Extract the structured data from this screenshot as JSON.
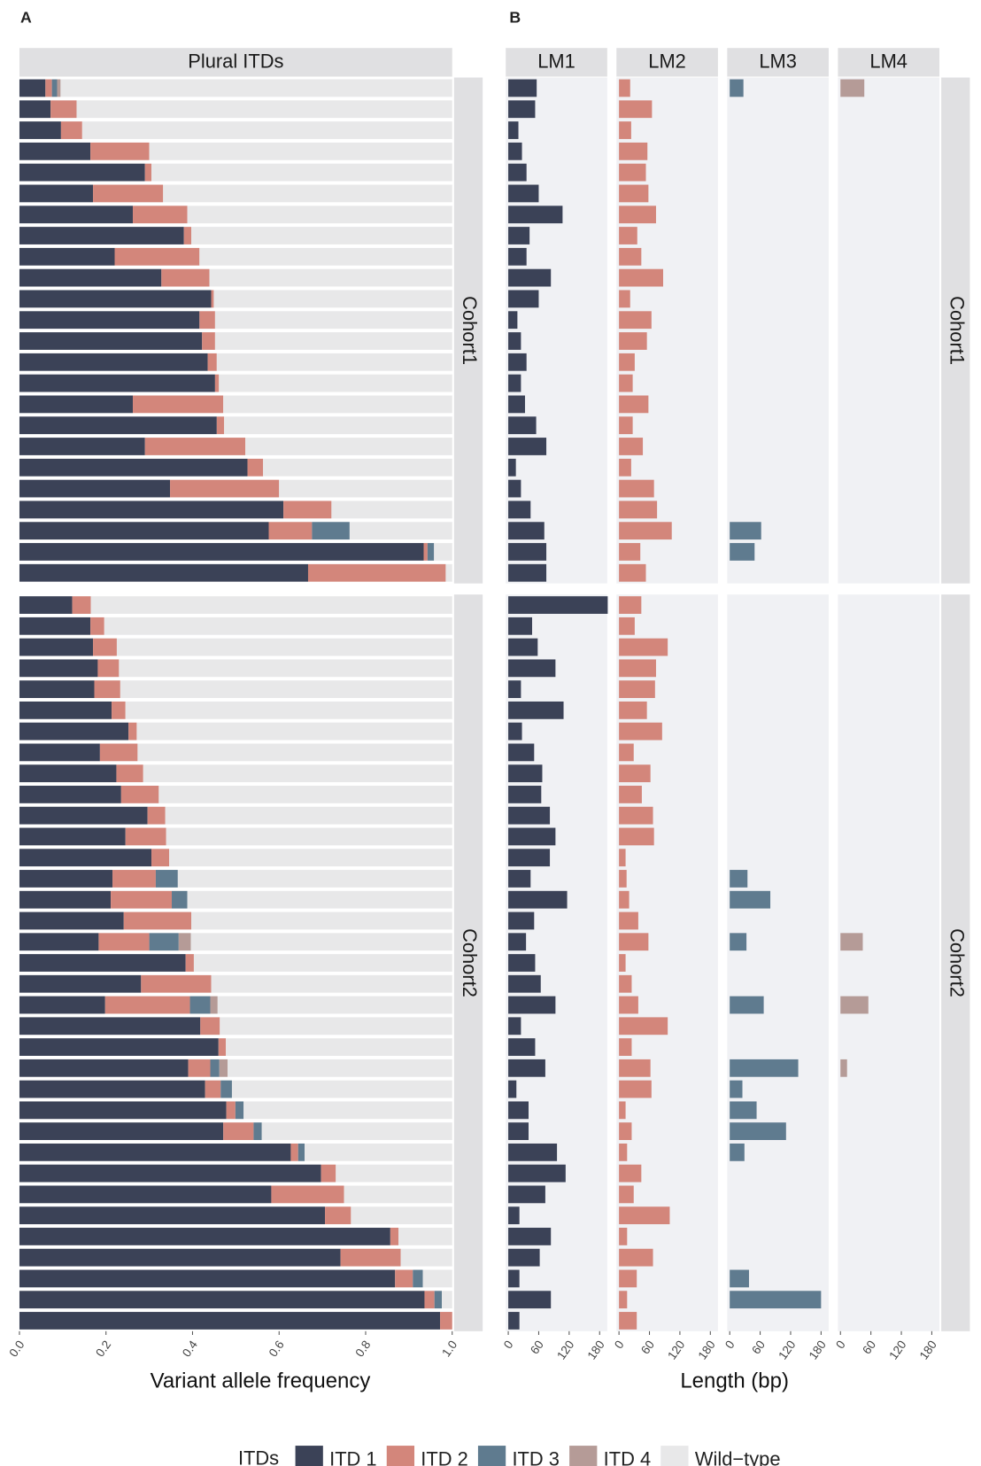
{
  "legend": {
    "title": "ITDs",
    "items": [
      {
        "name": "ITD 1",
        "color": "#3b4257"
      },
      {
        "name": "ITD 2",
        "color": "#d3867b"
      },
      {
        "name": "ITD 3",
        "color": "#5f7b8f"
      },
      {
        "name": "ITD 4",
        "color": "#b59b97"
      },
      {
        "name": "Wild−type",
        "color": "#e8e8e9"
      }
    ]
  },
  "chart_data": [
    {
      "type": "stacked-bar",
      "panel_label": "A",
      "strip_title": "Plural ITDs",
      "x_label": "Variant allele frequency",
      "xlim": [
        0,
        1
      ],
      "xticks": [
        {
          "value": 0,
          "label": "0.0"
        },
        0.2,
        0.4,
        0.6,
        0.8,
        {
          "value": 1,
          "label": "1.0"
        }
      ],
      "facets": [
        {
          "name": "Cohort1",
          "series": [
            [
              0.06,
              0.072,
              0.096,
              0.164,
              0.29,
              0.17,
              0.262,
              0.38,
              0.22,
              0.328,
              0.443,
              0.416,
              0.422,
              0.435,
              0.452,
              0.262,
              0.456,
              0.29,
              0.527,
              0.348,
              0.61,
              0.576,
              0.934,
              0.667
            ],
            [
              0.015,
              0.06,
              0.049,
              0.136,
              0.015,
              0.162,
              0.126,
              0.017,
              0.196,
              0.111,
              0.006,
              0.036,
              0.03,
              0.021,
              0.009,
              0.209,
              0.017,
              0.232,
              0.036,
              0.252,
              0.111,
              0.1,
              0.009,
              0.318
            ],
            [
              0.012,
              null,
              null,
              null,
              null,
              null,
              null,
              null,
              null,
              null,
              null,
              null,
              null,
              null,
              null,
              null,
              null,
              null,
              null,
              null,
              null,
              0.087,
              0.015,
              null
            ],
            [
              0.008,
              null,
              null,
              null,
              null,
              null,
              null,
              null,
              null,
              null,
              null,
              null,
              null,
              null,
              null,
              null,
              null,
              null,
              null,
              null,
              null,
              null,
              null,
              null
            ],
            [
              0.905,
              0.868,
              0.855,
              0.7,
              0.695,
              0.668,
              0.612,
              0.603,
              0.584,
              0.561,
              0.551,
              0.548,
              0.548,
              0.544,
              0.539,
              0.529,
              0.527,
              0.478,
              0.437,
              0.4,
              0.279,
              0.237,
              0.042,
              0.015
            ]
          ]
        },
        {
          "name": "Cohort2",
          "series": [
            [
              0.122,
              0.164,
              0.17,
              0.181,
              0.173,
              0.213,
              0.252,
              0.186,
              0.224,
              0.235,
              0.296,
              0.245,
              0.305,
              0.215,
              0.211,
              0.241,
              0.183,
              0.384,
              0.281,
              0.198,
              0.418,
              0.46,
              0.39,
              0.429,
              0.478,
              0.471,
              0.627,
              0.697,
              0.582,
              0.706,
              0.857,
              0.742,
              0.868,
              0.936,
              0.972
            ],
            [
              0.043,
              0.032,
              0.055,
              0.049,
              0.06,
              0.032,
              0.019,
              0.087,
              0.062,
              0.087,
              0.041,
              0.094,
              0.041,
              0.1,
              0.141,
              0.156,
              0.117,
              0.019,
              0.162,
              0.196,
              0.045,
              0.017,
              0.051,
              0.036,
              0.021,
              0.07,
              0.017,
              0.034,
              0.168,
              0.06,
              0.019,
              0.139,
              0.041,
              0.023,
              0.028
            ],
            [
              null,
              null,
              null,
              null,
              null,
              null,
              null,
              null,
              null,
              null,
              null,
              null,
              null,
              0.051,
              0.036,
              null,
              0.068,
              null,
              null,
              0.047,
              null,
              null,
              0.021,
              0.026,
              0.019,
              0.019,
              0.015,
              null,
              null,
              null,
              null,
              null,
              0.023,
              0.017,
              null
            ],
            [
              null,
              null,
              null,
              null,
              null,
              null,
              null,
              null,
              null,
              null,
              null,
              null,
              null,
              null,
              null,
              null,
              0.028,
              null,
              null,
              0.017,
              null,
              null,
              0.019,
              null,
              null,
              null,
              null,
              null,
              null,
              null,
              null,
              null,
              null,
              null,
              null
            ],
            [
              0.835,
              0.804,
              0.775,
              0.77,
              0.767,
              0.755,
              0.729,
              0.727,
              0.714,
              0.678,
              0.663,
              0.661,
              0.654,
              0.634,
              0.612,
              0.603,
              0.604,
              0.597,
              0.557,
              0.542,
              0.537,
              0.523,
              0.519,
              0.509,
              0.482,
              0.44,
              0.341,
              0.269,
              0.25,
              0.234,
              0.124,
              0.119,
              0.068,
              0.024,
              0
            ]
          ]
        }
      ]
    },
    {
      "type": "faceted-bar",
      "panel_label": "B",
      "columns": [
        "LM1",
        "LM2",
        "LM3",
        "LM4"
      ],
      "x_label": "Length (bp)",
      "xlim": [
        -5,
        195
      ],
      "xticks": [
        0,
        60,
        120,
        180
      ],
      "facets": [
        {
          "name": "Cohort1",
          "series": [
            [
              56,
              53,
              20,
              27,
              36,
              60,
              107,
              42,
              36,
              84,
              60,
              18,
              25,
              36,
              25,
              33,
              55,
              75,
              15,
              25,
              44,
              71,
              75,
              75
            ],
            [
              22,
              65,
              24,
              56,
              53,
              58,
              73,
              36,
              44,
              87,
              22,
              64,
              55,
              31,
              27,
              58,
              27,
              47,
              24,
              69,
              75,
              104,
              42,
              53
            ],
            [
              27,
              null,
              null,
              null,
              null,
              null,
              null,
              null,
              null,
              null,
              null,
              null,
              null,
              null,
              null,
              null,
              null,
              null,
              null,
              null,
              null,
              62,
              49,
              null
            ],
            [
              47,
              null,
              null,
              null,
              null,
              null,
              null,
              null,
              null,
              null,
              null,
              null,
              null,
              null,
              null,
              null,
              null,
              null,
              null,
              null,
              null,
              null,
              null,
              null
            ]
          ]
        },
        {
          "name": "Cohort2",
          "series": [
            [
              196,
              47,
              58,
              93,
              25,
              109,
              27,
              51,
              67,
              65,
              82,
              93,
              82,
              44,
              116,
              51,
              35,
              53,
              64,
              93,
              25,
              53,
              73,
              16,
              40,
              40,
              96,
              113,
              73,
              22,
              84,
              62,
              22,
              84,
              22
            ],
            [
              44,
              31,
              96,
              73,
              71,
              55,
              85,
              29,
              62,
              45,
              67,
              69,
              13,
              15,
              20,
              38,
              58,
              13,
              25,
              38,
              96,
              25,
              62,
              64,
              13,
              25,
              16,
              44,
              29,
              100,
              16,
              67,
              35,
              16,
              35
            ],
            [
              null,
              null,
              null,
              null,
              null,
              null,
              null,
              null,
              null,
              null,
              null,
              null,
              null,
              35,
              80,
              null,
              33,
              null,
              null,
              67,
              null,
              null,
              135,
              25,
              53,
              111,
              29,
              null,
              null,
              null,
              null,
              null,
              38,
              180,
              null
            ],
            [
              null,
              null,
              null,
              null,
              null,
              null,
              null,
              null,
              null,
              null,
              null,
              null,
              null,
              null,
              null,
              null,
              44,
              null,
              null,
              55,
              null,
              null,
              13,
              null,
              null,
              null,
              null,
              null,
              null,
              null,
              null,
              null,
              null,
              null,
              null
            ]
          ]
        }
      ]
    }
  ]
}
